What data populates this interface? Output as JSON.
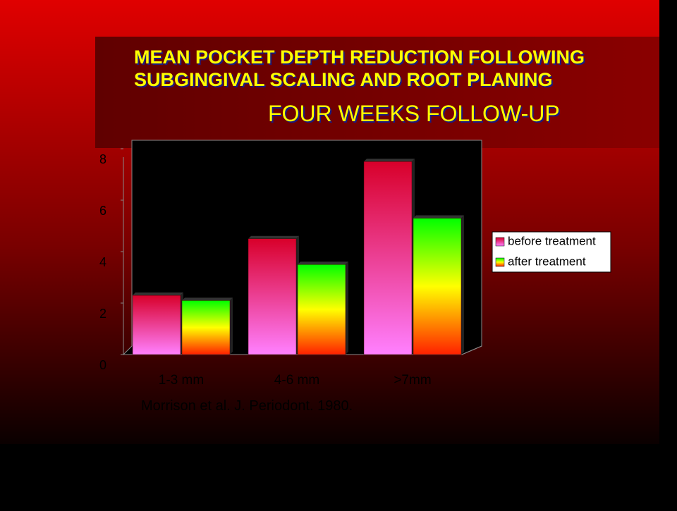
{
  "chart_data": {
    "type": "bar",
    "title": [
      "MEAN POCKET DEPTH REDUCTION FOLLOWING",
      "SUBGINGIVAL SCALING AND ROOT PLANING"
    ],
    "subtitle": "FOUR WEEKS FOLLOW-UP",
    "source": "Morrison et al.  J. Periodont. 1980.",
    "categories": [
      "1-3 mm",
      "4-6 mm",
      ">7mm"
    ],
    "series": [
      {
        "name": "before treatment",
        "gradient": [
          "#d8002a",
          "#ff80ff"
        ],
        "values": [
          2.3,
          4.5,
          7.5
        ]
      },
      {
        "name": "after treatment",
        "gradient": [
          "#00ff00",
          "#ffff00",
          "#ff2000"
        ],
        "values": [
          2.1,
          3.5,
          5.3
        ]
      }
    ],
    "ylim": [
      0,
      8
    ],
    "yticks": [
      0,
      2,
      4,
      6,
      8
    ]
  }
}
